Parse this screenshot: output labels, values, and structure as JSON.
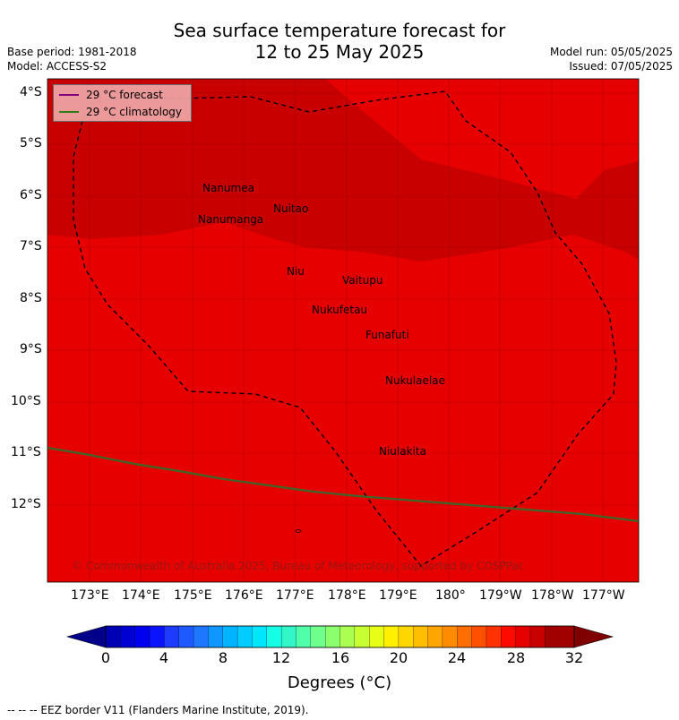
{
  "title": {
    "line1": "Sea surface temperature forecast for",
    "line2": "12 to 25 May 2025"
  },
  "meta": {
    "base_period": "Base period: 1981-2018",
    "model": "Model: ACCESS-S2",
    "model_run": "Model run: 05/05/2025",
    "issued": "Issued: 07/05/2025"
  },
  "legend": {
    "forecast": "29 °C  forecast",
    "climatology": "29 °C  climatology",
    "forecast_color": "#800080",
    "climatology_color": "#2e7d18"
  },
  "axes": {
    "lat_ticks": [
      "4°S",
      "5°S",
      "6°S",
      "7°S",
      "8°S",
      "9°S",
      "10°S",
      "11°S",
      "12°S"
    ],
    "lon_ticks": [
      "173°E",
      "174°E",
      "175°E",
      "176°E",
      "177°E",
      "178°E",
      "179°E",
      "180°",
      "179°W",
      "178°W",
      "177°W"
    ]
  },
  "places": [
    {
      "name": "Nanumea"
    },
    {
      "name": "Nuitao"
    },
    {
      "name": "Nanumanga"
    },
    {
      "name": "Niu"
    },
    {
      "name": "Vaitupu"
    },
    {
      "name": "Nukufetau"
    },
    {
      "name": "Funafuti"
    },
    {
      "name": "Nukulaelae"
    },
    {
      "name": "Niulakita"
    }
  ],
  "copyright": "© Commonwealth of Australia 2025, Bureau of Meteorology, supported by COSPPac",
  "colorbar": {
    "ticks": [
      "0",
      "4",
      "8",
      "12",
      "16",
      "20",
      "24",
      "28",
      "32"
    ],
    "label": "Degrees (°C)",
    "colors": [
      "#00008b",
      "#0000b4",
      "#0000d2",
      "#0000f0",
      "#0a14ff",
      "#1e3cff",
      "#1e5aff",
      "#1e78ff",
      "#0f96ff",
      "#00b4ff",
      "#00cdff",
      "#00e6ff",
      "#14ffe6",
      "#32f5c8",
      "#50ffaa",
      "#6eff8c",
      "#8cff6e",
      "#aaff50",
      "#c8ff32",
      "#e6ff14",
      "#fff000",
      "#ffd700",
      "#ffbe00",
      "#ffa500",
      "#ff8c00",
      "#ff6e00",
      "#ff5000",
      "#ff3200",
      "#ff0a00",
      "#e60000",
      "#c80000",
      "#a00000",
      "#800000"
    ],
    "field_colors": {
      "main": "#e60000",
      "warm": "#c80000"
    }
  },
  "footnote": "--  --  -- EEZ border V11 (Flanders Marine Institute, 2019)."
}
